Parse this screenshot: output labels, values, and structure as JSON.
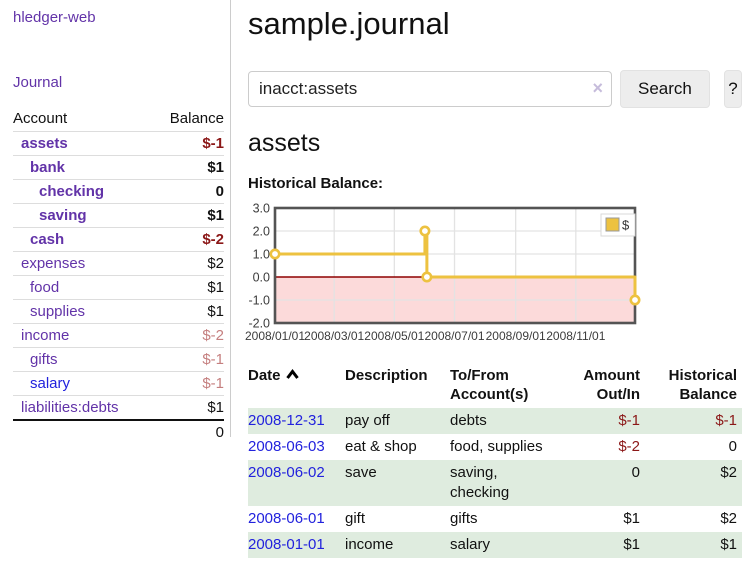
{
  "app": {
    "brand": "hledger-web",
    "nav_journal": "Journal"
  },
  "sidebar": {
    "header": {
      "account": "Account",
      "balance": "Balance"
    },
    "accounts": [
      {
        "name": "assets",
        "balance": "$-1",
        "indent": 1,
        "bold": true,
        "name_color": "purple",
        "balance_color": "darkred"
      },
      {
        "name": "bank",
        "balance": "$1",
        "indent": 2,
        "bold": true,
        "name_color": "purple",
        "balance_color": "black"
      },
      {
        "name": "checking",
        "balance": "0",
        "indent": 3,
        "bold": true,
        "name_color": "purple",
        "balance_color": "black"
      },
      {
        "name": "saving",
        "balance": "$1",
        "indent": 3,
        "bold": true,
        "name_color": "purple",
        "balance_color": "black"
      },
      {
        "name": "cash",
        "balance": "$-2",
        "indent": 2,
        "bold": true,
        "name_color": "purple",
        "balance_color": "darkred"
      },
      {
        "name": "expenses",
        "balance": "$2",
        "indent": 1,
        "bold": false,
        "name_color": "purple",
        "balance_color": "black"
      },
      {
        "name": "food",
        "balance": "$1",
        "indent": 2,
        "bold": false,
        "name_color": "purple",
        "balance_color": "black"
      },
      {
        "name": "supplies",
        "balance": "$1",
        "indent": 2,
        "bold": false,
        "name_color": "purple",
        "balance_color": "black"
      },
      {
        "name": "income",
        "balance": "$-2",
        "indent": 1,
        "bold": false,
        "name_color": "purple",
        "balance_color": "fadedred"
      },
      {
        "name": "gifts",
        "balance": "$-1",
        "indent": 2,
        "bold": false,
        "name_color": "purple",
        "balance_color": "fadedred"
      },
      {
        "name": "salary",
        "balance": "$-1",
        "indent": 2,
        "bold": false,
        "name_color": "blue",
        "balance_color": "fadedred"
      },
      {
        "name": "liabilities:debts",
        "balance": "$1",
        "indent": 1,
        "bold": false,
        "name_color": "purple",
        "balance_color": "black"
      }
    ],
    "total": "0"
  },
  "header": {
    "title": "sample.journal"
  },
  "search": {
    "value": "inacct:assets",
    "clear_icon": "×",
    "button_label": "Search",
    "help_label": "?"
  },
  "account_page": {
    "title": "assets",
    "chart_label": "Historical Balance:"
  },
  "chart_data": {
    "type": "line",
    "title": "Historical Balance",
    "legend": "$",
    "legend_position": "top-right",
    "ylim": [
      -2,
      3
    ],
    "x_span_days": 365,
    "y_ticks": [
      "3.0",
      "2.0",
      "1.0",
      "0.0",
      "-1.0",
      "-2.0"
    ],
    "x_ticks": [
      {
        "label": "2008/01/01",
        "day": 0
      },
      {
        "label": "2008/03/01",
        "day": 60
      },
      {
        "label": "2008/05/01",
        "day": 121
      },
      {
        "label": "2008/07/01",
        "day": 182
      },
      {
        "label": "2008/09/01",
        "day": 244
      },
      {
        "label": "2008/11/01",
        "day": 305
      }
    ],
    "series": [
      {
        "name": "$",
        "color": "#edc240",
        "step": true,
        "points": [
          {
            "date": "2008-01-01",
            "day": 0,
            "value": 1
          },
          {
            "date": "2008-06-01",
            "day": 152,
            "value": 2
          },
          {
            "date": "2008-06-03",
            "day": 154,
            "value": 0
          },
          {
            "date": "2008-12-31",
            "day": 365,
            "value": -1
          }
        ]
      }
    ],
    "grid_on": true,
    "grid_color": "#e3e3e3",
    "border_color": "#545454",
    "zero_line_color": "#8e0000",
    "negative_region_color": "#fcdada"
  },
  "register": {
    "columns": [
      {
        "line1": "Date",
        "line2": "",
        "align": "left",
        "sort_asc": true
      },
      {
        "line1": "Description",
        "line2": "",
        "align": "left"
      },
      {
        "line1": "To/From",
        "line2": "Account(s)",
        "align": "left"
      },
      {
        "line1": "Amount",
        "line2": "Out/In",
        "align": "right"
      },
      {
        "line1": "Historical",
        "line2": "Balance",
        "align": "right"
      }
    ],
    "rows": [
      {
        "date": "2008-12-31",
        "description": "pay off",
        "accounts": "debts",
        "amount": "$-1",
        "amount_neg": true,
        "balance": "$-1",
        "balance_neg": true,
        "shaded": true
      },
      {
        "date": "2008-06-03",
        "description": "eat & shop",
        "accounts": "food, supplies",
        "amount": "$-2",
        "amount_neg": true,
        "balance": "0",
        "balance_neg": false,
        "shaded": false
      },
      {
        "date": "2008-06-02",
        "description": "save",
        "accounts": "saving, checking",
        "amount": "0",
        "amount_neg": false,
        "balance": "$2",
        "balance_neg": false,
        "shaded": true
      },
      {
        "date": "2008-06-01",
        "description": "gift",
        "accounts": "gifts",
        "amount": "$1",
        "amount_neg": false,
        "balance": "$2",
        "balance_neg": false,
        "shaded": false
      },
      {
        "date": "2008-01-01",
        "description": "income",
        "accounts": "salary",
        "amount": "$1",
        "amount_neg": false,
        "balance": "$1",
        "balance_neg": false,
        "shaded": true
      }
    ]
  }
}
